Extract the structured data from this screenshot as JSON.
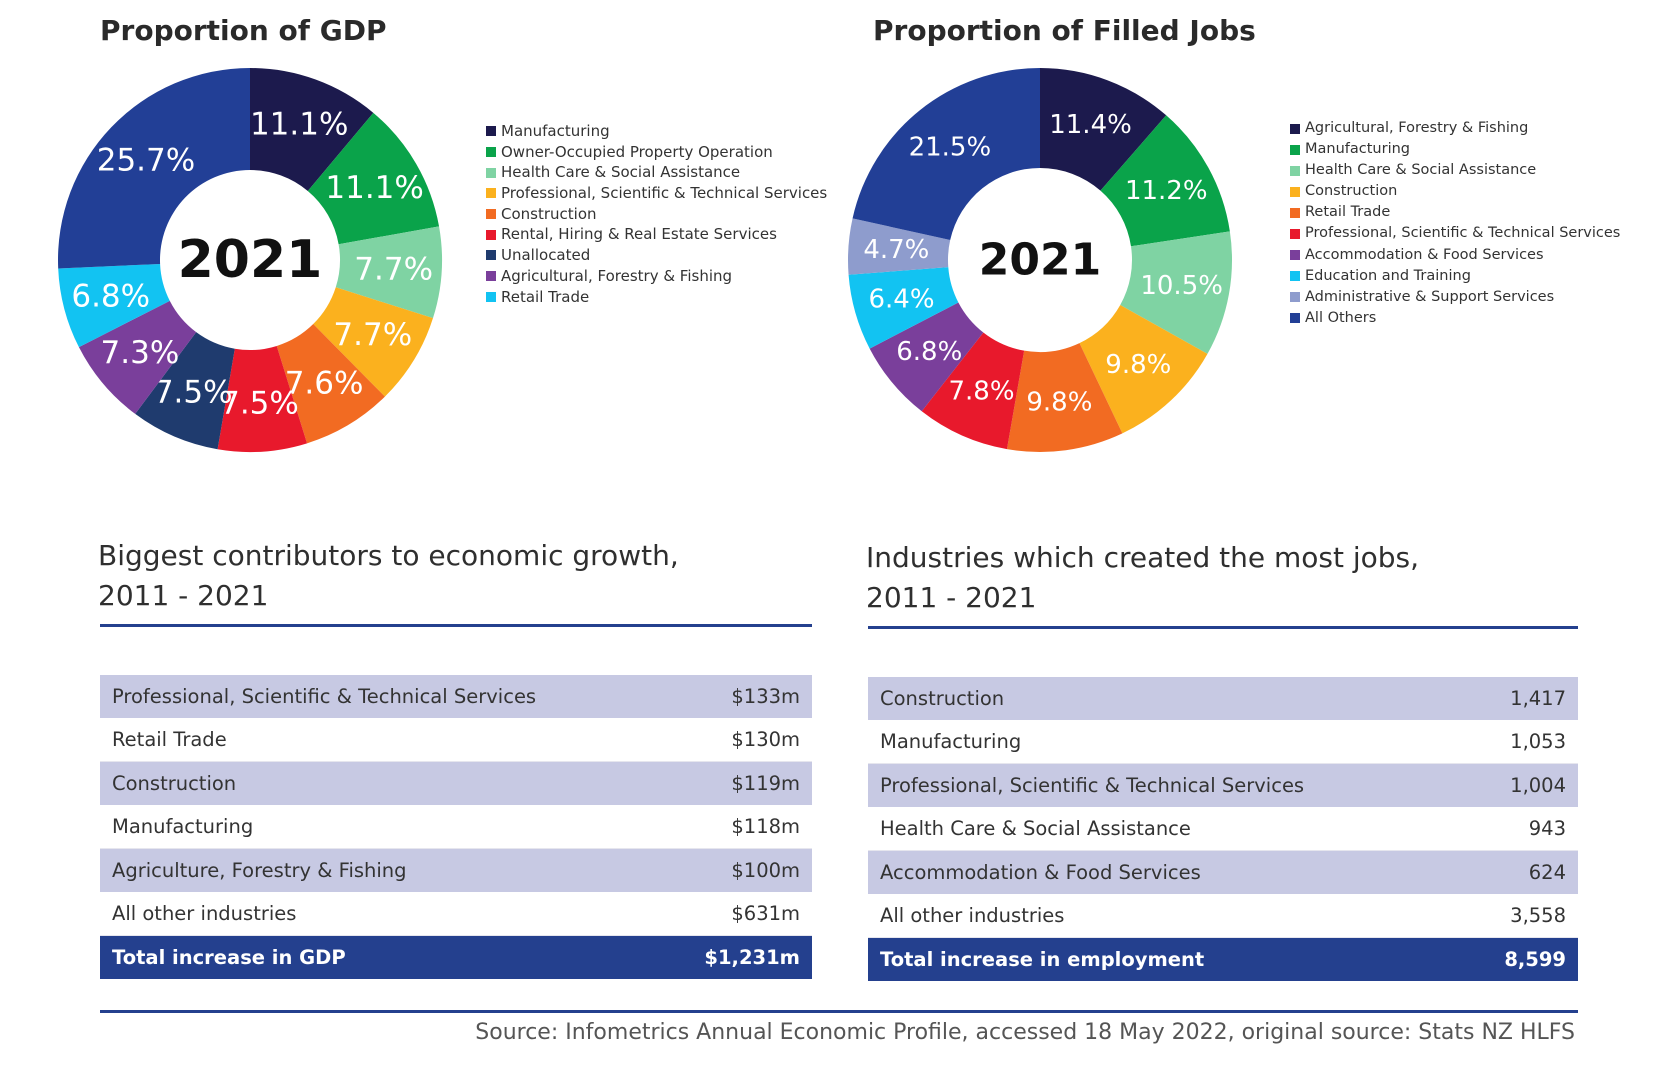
{
  "chart_data": [
    {
      "type": "pie",
      "title": "Proportion of GDP",
      "center_label": "2021",
      "slices": [
        {
          "label": "Manufacturing",
          "value": 11.1,
          "display": "11.1%",
          "color": "#1c1a4d"
        },
        {
          "label": "Owner-Occupied Property Operation",
          "value": 11.1,
          "display": "11.1%",
          "color": "#0aa34a"
        },
        {
          "label": "Health Care & Social Assistance",
          "value": 7.7,
          "display": "7.7%",
          "color": "#7fd3a3"
        },
        {
          "label": "Professional, Scientific & Technical Services",
          "value": 7.7,
          "display": "7.7%",
          "color": "#fbb11e"
        },
        {
          "label": "Construction",
          "value": 7.6,
          "display": "7.6%",
          "color": "#f26b22"
        },
        {
          "label": "Rental, Hiring & Real Estate Services",
          "value": 7.5,
          "display": "7.5%",
          "color": "#e8192c"
        },
        {
          "label": "Unallocated",
          "value": 7.5,
          "display": "7.5%",
          "color": "#1f3b6e"
        },
        {
          "label": "Agricultural, Forestry & Fishing",
          "value": 7.3,
          "display": "7.3%",
          "color": "#7a3f9b"
        },
        {
          "label": "Retail Trade",
          "value": 6.8,
          "display": "6.8%",
          "color": "#12c3f2"
        },
        {
          "label": "",
          "value": 25.7,
          "display": "25.7%",
          "color": "#223f96"
        }
      ]
    },
    {
      "type": "pie",
      "title": "Proportion of Filled Jobs",
      "center_label": "2021",
      "slices": [
        {
          "label": "Agricultural, Forestry & Fishing",
          "value": 11.4,
          "display": "11.4%",
          "color": "#1c1a4d"
        },
        {
          "label": "Manufacturing",
          "value": 11.2,
          "display": "11.2%",
          "color": "#0aa34a"
        },
        {
          "label": "Health Care & Social Assistance",
          "value": 10.5,
          "display": "10.5%",
          "color": "#7fd3a3"
        },
        {
          "label": "Construction",
          "value": 9.8,
          "display": "9.8%",
          "color": "#fbb11e"
        },
        {
          "label": "Retail Trade",
          "value": 9.8,
          "display": "9.8%",
          "color": "#f26b22"
        },
        {
          "label": "Professional, Scientific & Technical Services",
          "value": 7.8,
          "display": "7.8%",
          "color": "#e8192c"
        },
        {
          "label": "Accommodation & Food Services",
          "value": 6.8,
          "display": "6.8%",
          "color": "#7a3f9b"
        },
        {
          "label": "Education and Training",
          "value": 6.4,
          "display": "6.4%",
          "color": "#12c3f2"
        },
        {
          "label": "Administrative & Support Services",
          "value": 4.7,
          "display": "4.7%",
          "color": "#8e9ccd"
        },
        {
          "label": "All Others",
          "value": 21.5,
          "display": "21.5%",
          "color": "#223f96"
        }
      ]
    }
  ],
  "growth_table": {
    "title_line1": "Biggest contributors to economic growth,",
    "title_line2": "2011 - 2021",
    "rows": [
      {
        "name": "Professional, Scientific & Technical Services",
        "value": "$133m"
      },
      {
        "name": "Retail Trade",
        "value": "$130m"
      },
      {
        "name": "Construction",
        "value": "$119m"
      },
      {
        "name": "Manufacturing",
        "value": "$118m"
      },
      {
        "name": "Agriculture, Forestry & Fishing",
        "value": "$100m"
      },
      {
        "name": "All other industries",
        "value": "$631m"
      }
    ],
    "total": {
      "name": "Total increase in GDP",
      "value": "$1,231m"
    }
  },
  "jobs_table": {
    "title_line1": "Industries which created the most jobs,",
    "title_line2": "2011 - 2021",
    "rows": [
      {
        "name": "Construction",
        "value": "1,417"
      },
      {
        "name": "Manufacturing",
        "value": "1,053"
      },
      {
        "name": "Professional, Scientific & Technical Services",
        "value": "1,004"
      },
      {
        "name": "Health Care & Social Assistance",
        "value": "943"
      },
      {
        "name": "Accommodation & Food Services",
        "value": "624"
      },
      {
        "name": "All other industries",
        "value": "3,558"
      }
    ],
    "total": {
      "name": "Total increase in employment",
      "value": "8,599"
    }
  },
  "footer": {
    "source": "Source: Infometrics Annual Economic Profile, accessed 18 May 2022, original source: Stats NZ HLFS"
  }
}
